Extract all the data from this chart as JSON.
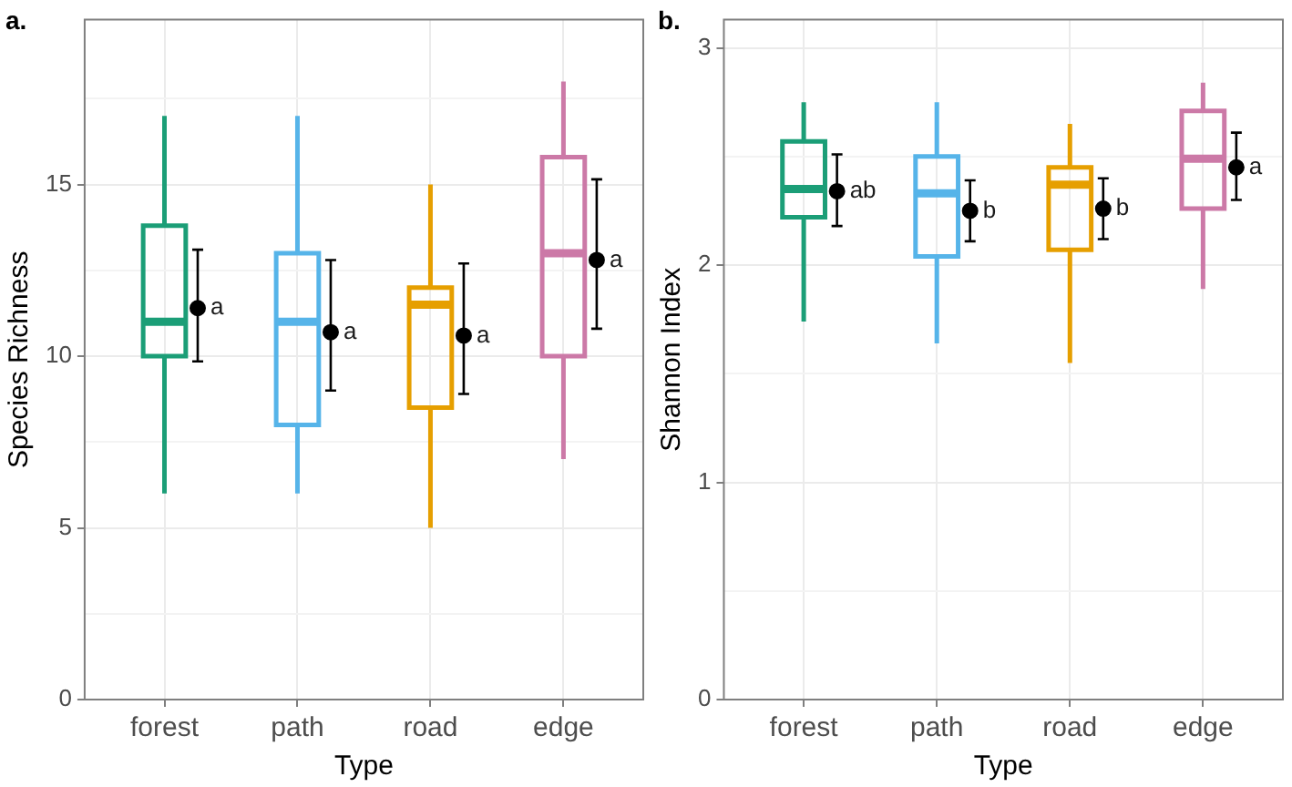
{
  "chart_data": [
    {
      "type": "box",
      "title": "a.",
      "xlabel": "Type",
      "ylabel": "Species Richness",
      "categories": [
        "forest",
        "path",
        "road",
        "edge"
      ],
      "ylim": [
        0,
        19.8
      ],
      "yticks": [
        0,
        {
          "value": 2.5,
          "label": null
        },
        5,
        {
          "value": 7.5,
          "label": null
        },
        10,
        {
          "value": 12.5,
          "label": null
        },
        15,
        {
          "value": 17.5,
          "label": null
        }
      ],
      "grid": true,
      "legend": false,
      "marker": "circle",
      "series": [
        {
          "colors": [
            "#1b9e77",
            "#56b4e9",
            "#e69f00",
            "#cc79a7"
          ],
          "boxes": [
            {
              "low": 6,
              "q1": 10,
              "median": 11,
              "q3": 13.8,
              "high": 17
            },
            {
              "low": 6,
              "q1": 8,
              "median": 11,
              "q3": 13,
              "high": 17
            },
            {
              "low": 5,
              "q1": 8.5,
              "median": 11.5,
              "q3": 12,
              "high": 15
            },
            {
              "low": 7,
              "q1": 10,
              "median": 13,
              "q3": 15.8,
              "high": 18
            }
          ]
        },
        {
          "type": "scatter",
          "color": "#000000",
          "x": [
            "forest",
            "path",
            "road",
            "edge"
          ],
          "values": [
            11.4,
            10.7,
            10.6,
            12.8
          ],
          "errors": [
            [
              9.85,
              13.1
            ],
            [
              9.0,
              12.8
            ],
            [
              8.9,
              12.7
            ],
            [
              10.8,
              15.15
            ]
          ],
          "value_labels": [
            "a",
            "a",
            "a",
            "a"
          ]
        }
      ]
    },
    {
      "type": "box",
      "title": "b.",
      "xlabel": "Type",
      "ylabel": "Shannon Index",
      "categories": [
        "forest",
        "path",
        "road",
        "edge"
      ],
      "ylim": [
        0,
        3.13
      ],
      "yticks": [
        0,
        {
          "value": 0.5,
          "label": null
        },
        1,
        {
          "value": 1.5,
          "label": null
        },
        2,
        {
          "value": 2.5,
          "label": null
        },
        3
      ],
      "grid": true,
      "legend": false,
      "marker": "circle",
      "series": [
        {
          "colors": [
            "#1b9e77",
            "#56b4e9",
            "#e69f00",
            "#cc79a7"
          ],
          "boxes": [
            {
              "low": 1.74,
              "q1": 2.22,
              "median": 2.35,
              "q3": 2.57,
              "high": 2.75
            },
            {
              "low": 1.64,
              "q1": 2.04,
              "median": 2.33,
              "q3": 2.5,
              "high": 2.75
            },
            {
              "low": 1.55,
              "q1": 2.07,
              "median": 2.37,
              "q3": 2.45,
              "high": 2.65
            },
            {
              "low": 1.89,
              "q1": 2.26,
              "median": 2.49,
              "q3": 2.71,
              "high": 2.84
            }
          ]
        },
        {
          "type": "scatter",
          "color": "#000000",
          "x": [
            "forest",
            "path",
            "road",
            "edge"
          ],
          "values": [
            2.34,
            2.25,
            2.26,
            2.45
          ],
          "errors": [
            [
              2.18,
              2.51
            ],
            [
              2.11,
              2.39
            ],
            [
              2.12,
              2.4
            ],
            [
              2.3,
              2.61
            ]
          ],
          "value_labels": [
            "ab",
            "b",
            "b",
            "a"
          ]
        }
      ]
    }
  ]
}
